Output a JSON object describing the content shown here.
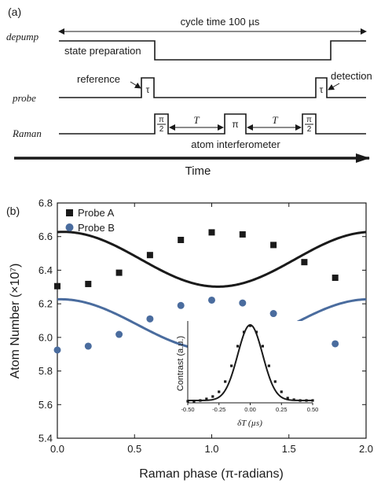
{
  "panel_a": {
    "label": "(a)",
    "cycle_label": "cycle time 100 µs",
    "row_labels": {
      "depump": "depump",
      "probe": "probe",
      "raman": "Raman"
    },
    "state_prep": "state preparation",
    "reference": "reference",
    "detection": "detection",
    "tau": "τ",
    "T": "T",
    "pi": "π",
    "pi_half_num": "π",
    "pi_half_den": "2",
    "interferometer": "atom interferometer",
    "time_label": "Time"
  },
  "chart_data": [
    {
      "type": "scatter",
      "panel": "(b)",
      "xlabel": "Raman phase (π-radians)",
      "ylabel": "Atom Number (×10⁷)",
      "xlim": [
        0.0,
        2.0
      ],
      "ylim": [
        5.4,
        6.8
      ],
      "xticks": [
        "0.0",
        "0.5",
        "1.0",
        "1.5",
        "2.0"
      ],
      "yticks": [
        "5.4",
        "5.6",
        "5.8",
        "6.0",
        "6.2",
        "6.4",
        "6.6",
        "6.8"
      ],
      "legend_position": "top-left",
      "series": [
        {
          "name": "Probe A",
          "marker": "square",
          "color": "#1a1a1a",
          "x": [
            0.0,
            0.2,
            0.4,
            0.6,
            0.8,
            1.0,
            1.2,
            1.4,
            1.6,
            1.8
          ],
          "y": [
            6.305,
            6.318,
            6.385,
            6.49,
            6.58,
            6.625,
            6.613,
            6.55,
            6.448,
            6.355
          ],
          "fit": {
            "offset": 6.465,
            "amplitude": 0.163,
            "phase_center": 1.04
          }
        },
        {
          "name": "Probe B",
          "marker": "circle",
          "color": "#4a6c9e",
          "x": [
            0.0,
            0.2,
            0.4,
            0.6,
            0.8,
            1.0,
            1.2,
            1.4,
            1.6,
            1.8
          ],
          "y": [
            5.925,
            5.948,
            6.018,
            6.11,
            6.19,
            6.222,
            6.205,
            6.142,
            6.04,
            5.962
          ],
          "fit": {
            "offset": 6.075,
            "amplitude": 0.152,
            "phase_center": 1.02
          }
        }
      ]
    },
    {
      "type": "scatter",
      "panel": "inset",
      "xlabel": "δT (µs)",
      "ylabel": "Contrast (a.u.)",
      "xlim": [
        -0.5,
        0.5
      ],
      "ylim": [
        0,
        1
      ],
      "xticks": [
        "-0.50",
        "-0.25",
        "0.00",
        "0.25",
        "0.50"
      ],
      "series": [
        {
          "name": "",
          "marker": "square",
          "color": "#1a1a1a",
          "x": [
            -0.5,
            -0.45,
            -0.4,
            -0.35,
            -0.3,
            -0.25,
            -0.2,
            -0.15,
            -0.1,
            -0.05,
            0.0,
            0.05,
            0.1,
            0.15,
            0.2,
            0.25,
            0.3,
            0.35,
            0.4,
            0.45,
            0.5
          ],
          "y": [
            0.02,
            0.02,
            0.03,
            0.05,
            0.08,
            0.14,
            0.27,
            0.47,
            0.72,
            0.9,
            0.98,
            0.9,
            0.72,
            0.47,
            0.27,
            0.14,
            0.06,
            0.04,
            0.03,
            0.03,
            0.03
          ],
          "fit": {
            "baseline": 0.03,
            "amplitude": 0.96,
            "center": 0.0,
            "sigma": 0.1
          }
        }
      ]
    }
  ]
}
